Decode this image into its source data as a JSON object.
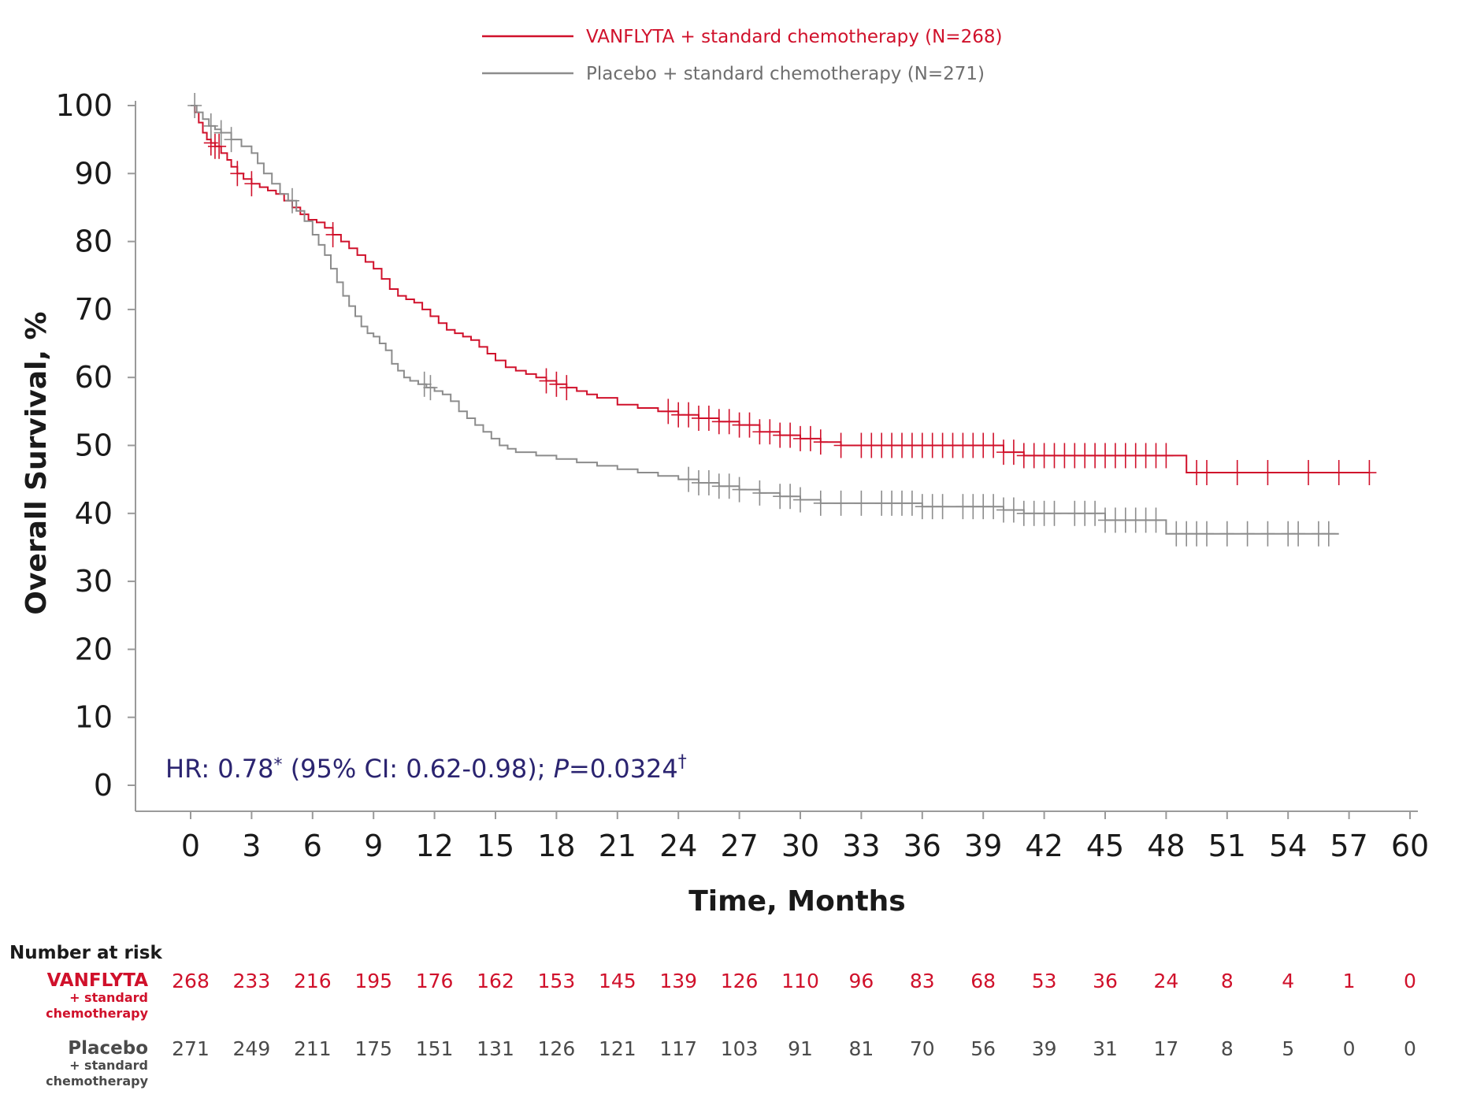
{
  "colors": {
    "vanflyta": "#d0112b",
    "placebo": "#8c8c8c",
    "hr_text": "#2b2470",
    "axis": "#9a9a9a"
  },
  "chart_data": {
    "type": "line",
    "subtype": "kaplan-meier",
    "xlabel": "Time, Months",
    "ylabel": "Overall Survival, %",
    "xlim": [
      0,
      60
    ],
    "ylim": [
      0,
      100
    ],
    "xticks": [
      0,
      3,
      6,
      9,
      12,
      15,
      18,
      21,
      24,
      27,
      30,
      33,
      36,
      39,
      42,
      45,
      48,
      51,
      54,
      57,
      60
    ],
    "yticks": [
      0,
      10,
      20,
      30,
      40,
      50,
      60,
      70,
      80,
      90,
      100
    ],
    "annotation": {
      "prefix": "HR: 0.78",
      "mark1": "*",
      "middle": " (95% CI: 0.62-0.98); ",
      "p_label": "P",
      "p_value": "=0.0324",
      "mark2": "†"
    },
    "legend": {
      "position": "top-center"
    },
    "series": [
      {
        "name": "VANFLYTA + standard chemotherapy (N=268)",
        "color": "#d0112b",
        "x": [
          0,
          0.2,
          0.4,
          0.6,
          0.8,
          1.0,
          1.2,
          1.5,
          1.8,
          2.0,
          2.3,
          2.6,
          3.0,
          3.4,
          3.8,
          4.2,
          4.6,
          5.0,
          5.4,
          5.8,
          6.2,
          6.6,
          7.0,
          7.4,
          7.8,
          8.2,
          8.6,
          9.0,
          9.4,
          9.8,
          10.2,
          10.6,
          11.0,
          11.4,
          11.8,
          12.2,
          12.6,
          13.0,
          13.4,
          13.8,
          14.2,
          14.6,
          15.0,
          15.5,
          16.0,
          16.5,
          17.0,
          17.5,
          18.0,
          18.5,
          19.0,
          19.5,
          20.0,
          21.0,
          22.0,
          23.0,
          24.0,
          25.0,
          26.0,
          27.0,
          28.0,
          29.0,
          30.0,
          31.0,
          32.0,
          35.0,
          38.0,
          40.0,
          41.0,
          44.0,
          46.0,
          48.0,
          49.0,
          52.0,
          55.0,
          58.0
        ],
        "y": [
          100,
          99,
          97.5,
          96,
          95,
          94.5,
          94,
          93,
          92,
          91,
          90,
          89.2,
          88.5,
          88,
          87.5,
          87,
          86,
          85,
          84,
          83.2,
          82.8,
          82,
          81,
          80,
          79,
          78,
          77,
          76,
          74.5,
          73,
          72,
          71.5,
          71,
          70,
          69,
          68,
          67,
          66.5,
          66,
          65.5,
          64.5,
          63.5,
          62.5,
          61.5,
          61,
          60.5,
          60,
          59.5,
          59,
          58.5,
          58,
          57.5,
          57,
          56,
          55.5,
          55,
          54.5,
          54,
          53.5,
          53,
          52,
          51.5,
          51,
          50.5,
          50,
          50,
          50,
          49,
          48.5,
          48.5,
          48.5,
          48.5,
          46,
          46,
          46,
          46
        ],
        "censor_x": [
          1.0,
          1.2,
          1.4,
          2.3,
          3.0,
          7.0,
          17.5,
          18.0,
          18.5,
          23.5,
          24.0,
          24.5,
          25.0,
          25.5,
          26.0,
          26.5,
          27.0,
          27.5,
          28.0,
          28.5,
          29.0,
          29.5,
          30.0,
          30.5,
          31.0,
          32.0,
          33.0,
          33.5,
          34.0,
          34.5,
          35.0,
          35.5,
          36.0,
          36.5,
          37.0,
          37.5,
          38.0,
          38.5,
          39.0,
          39.5,
          40.0,
          40.5,
          41.0,
          41.5,
          42.0,
          42.5,
          43.0,
          43.5,
          44.0,
          44.5,
          45.0,
          45.5,
          46.0,
          46.5,
          47.0,
          47.5,
          48.0,
          49.5,
          50.0,
          51.5,
          53.0,
          55.0,
          56.5,
          58.0
        ]
      },
      {
        "name": "Placebo + standard chemotherapy (N=271)",
        "color": "#8c8c8c",
        "x": [
          0,
          0.3,
          0.6,
          0.9,
          1.2,
          1.5,
          2.0,
          2.5,
          3.0,
          3.3,
          3.6,
          4.0,
          4.4,
          4.8,
          5.2,
          5.6,
          6.0,
          6.3,
          6.6,
          6.9,
          7.2,
          7.5,
          7.8,
          8.1,
          8.4,
          8.7,
          9.0,
          9.3,
          9.6,
          9.9,
          10.2,
          10.5,
          10.8,
          11.2,
          11.6,
          12.0,
          12.4,
          12.8,
          13.2,
          13.6,
          14.0,
          14.4,
          14.8,
          15.2,
          15.6,
          16.0,
          17.0,
          18.0,
          19.0,
          20.0,
          21.0,
          22.0,
          23.0,
          24.0,
          25.0,
          26.0,
          27.0,
          28.0,
          29.0,
          30.0,
          31.0,
          34.0,
          36.0,
          40.0,
          41.0,
          42.0,
          45.0,
          47.0,
          48.0,
          50.0,
          53.0,
          56.5
        ],
        "y": [
          100,
          99,
          98,
          97,
          96.5,
          96,
          95,
          94,
          93,
          91.5,
          90,
          88.5,
          87,
          86,
          84.5,
          83,
          81,
          79.5,
          78,
          76,
          74,
          72,
          70.5,
          69,
          67.5,
          66.5,
          66,
          65,
          64,
          62,
          61,
          60,
          59.5,
          59,
          58.5,
          58,
          57.5,
          56.5,
          55,
          54,
          53,
          52,
          51,
          50,
          49.5,
          49,
          48.5,
          48,
          47.5,
          47,
          46.5,
          46,
          45.5,
          45,
          44.5,
          44,
          43.5,
          43,
          42.5,
          42,
          41.5,
          41.5,
          41,
          40.5,
          40,
          40,
          39,
          39,
          37,
          37,
          37,
          37
        ],
        "censor_x": [
          0.2,
          1.0,
          1.5,
          2.0,
          5.0,
          11.5,
          11.8,
          24.5,
          25.0,
          25.5,
          26.0,
          26.5,
          27.0,
          28.0,
          29.0,
          29.5,
          30.0,
          31.0,
          32.0,
          33.0,
          34.0,
          34.5,
          35.0,
          35.5,
          36.0,
          36.5,
          37.0,
          38.0,
          38.5,
          39.0,
          39.5,
          40.0,
          40.5,
          41.0,
          41.5,
          42.0,
          42.5,
          43.5,
          44.0,
          44.5,
          45.0,
          45.5,
          46.0,
          46.5,
          47.0,
          47.5,
          48.5,
          49.0,
          49.5,
          50.0,
          51.0,
          52.0,
          53.0,
          54.0,
          54.5,
          55.5,
          56.0
        ]
      }
    ],
    "risk_table": {
      "header": "Number at risk",
      "times": [
        0,
        3,
        6,
        9,
        12,
        15,
        18,
        21,
        24,
        27,
        30,
        33,
        36,
        39,
        42,
        45,
        48,
        51,
        54,
        57,
        60
      ],
      "rows": [
        {
          "name": "VANFLYTA",
          "sub1": "+ standard",
          "sub2": "chemotherapy",
          "color": "#d0112b",
          "values": [
            268,
            233,
            216,
            195,
            176,
            162,
            153,
            145,
            139,
            126,
            110,
            96,
            83,
            68,
            53,
            36,
            24,
            8,
            4,
            1,
            0
          ]
        },
        {
          "name": "Placebo",
          "sub1": "+ standard",
          "sub2": "chemotherapy",
          "color": "#4a4a4a",
          "values": [
            271,
            249,
            211,
            175,
            151,
            131,
            126,
            121,
            117,
            103,
            91,
            81,
            70,
            56,
            39,
            31,
            17,
            8,
            5,
            0,
            0
          ]
        }
      ]
    }
  }
}
